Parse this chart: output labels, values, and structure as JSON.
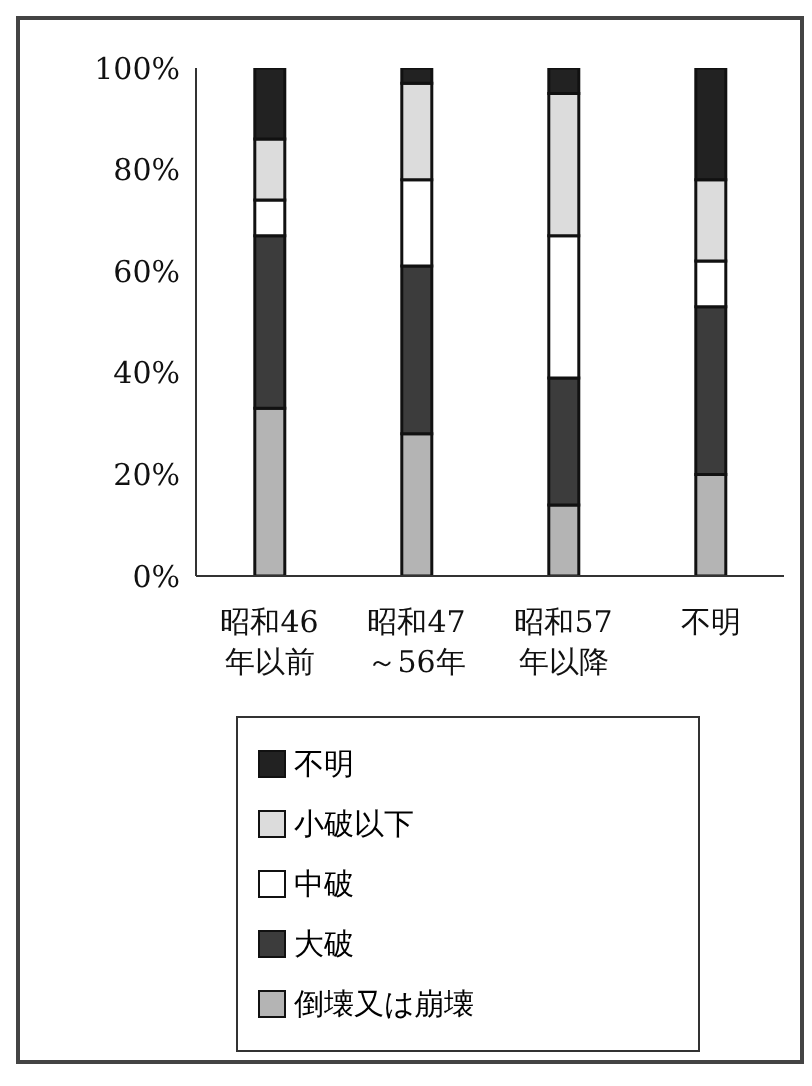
{
  "chart_data": {
    "type": "bar",
    "stacked": true,
    "categories": [
      "昭和46\n年以前",
      "昭和47\n～56年",
      "昭和57\n年以降",
      "不明"
    ],
    "series": [
      {
        "name": "倒壊又は崩壊",
        "color": "#b4b4b4",
        "values": [
          33,
          28,
          14,
          20
        ]
      },
      {
        "name": "大破",
        "color": "#3c3c3c",
        "values": [
          34,
          33,
          25,
          33
        ]
      },
      {
        "name": "中破",
        "color": "#ffffff",
        "values": [
          7,
          17,
          28,
          9
        ]
      },
      {
        "name": "小破以下",
        "color": "#dcdcdc",
        "values": [
          12,
          19,
          28,
          16
        ]
      },
      {
        "name": "不明",
        "color": "#222222",
        "values": [
          14,
          3,
          5,
          22
        ]
      }
    ],
    "ylim": [
      0,
      100
    ],
    "yticks": [
      {
        "value": 0,
        "label": "0%"
      },
      {
        "value": 20,
        "label": "20%"
      },
      {
        "value": 40,
        "label": "40%"
      },
      {
        "value": 60,
        "label": "60%"
      },
      {
        "value": 80,
        "label": "80%"
      },
      {
        "value": 100,
        "label": "100%"
      }
    ],
    "legend": "bottom"
  }
}
